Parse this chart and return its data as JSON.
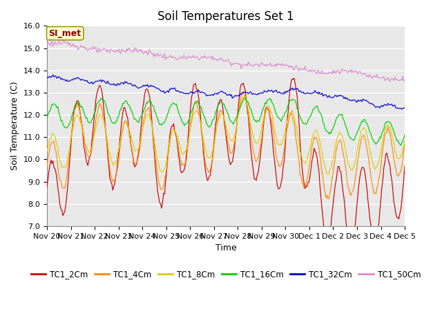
{
  "title": "Soil Temperatures Set 1",
  "xlabel": "Time",
  "ylabel": "Soil Temperature (C)",
  "ylim": [
    7.0,
    16.0
  ],
  "yticks": [
    7.0,
    8.0,
    9.0,
    10.0,
    11.0,
    12.0,
    13.0,
    14.0,
    15.0,
    16.0
  ],
  "fig_bg_color": "#ffffff",
  "plot_bg_color": "#e8e8e8",
  "grid_color": "#ffffff",
  "legend_label": "SI_met",
  "series_colors": {
    "TC1_2Cm": "#cc0000",
    "TC1_4Cm": "#ff8800",
    "TC1_8Cm": "#ddcc00",
    "TC1_16Cm": "#00cc00",
    "TC1_32Cm": "#0000cc",
    "TC1_50Cm": "#dd88cc"
  },
  "xtick_labels": [
    "Nov 20",
    "Nov 21",
    "Nov 22",
    "Nov 23",
    "Nov 24",
    "Nov 25",
    "Nov 26",
    "Nov 27",
    "Nov 28",
    "Nov 29",
    "Nov 30",
    "Dec 1",
    "Dec 2",
    "Dec 3",
    "Dec 4",
    "Dec 5"
  ],
  "title_fontsize": 12,
  "axis_label_fontsize": 9,
  "tick_fontsize": 8
}
